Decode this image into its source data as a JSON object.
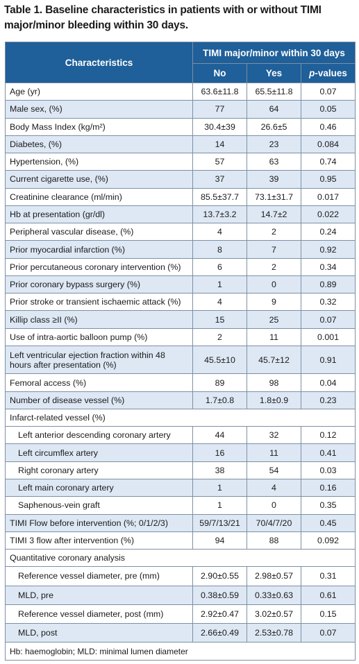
{
  "title": "Table 1. Baseline characteristics in patients with or without TIMI major/minor bleeding within 30 days.",
  "header": {
    "characteristics": "Characteristics",
    "group": "TIMI major/minor within 30 days",
    "no": "No",
    "yes": "Yes",
    "p_italic": "p",
    "p_rest": "-values"
  },
  "rows": [
    {
      "label": "Age (yr)",
      "no": "63.6±11.8",
      "yes": "65.5±11.8",
      "p": "0.07"
    },
    {
      "label": "Male sex, (%)",
      "no": "77",
      "yes": "64",
      "p": "0.05"
    },
    {
      "label": "Body Mass Index (kg/m²)",
      "no": "30.4±39",
      "yes": "26.6±5",
      "p": "0.46"
    },
    {
      "label": "Diabetes, (%)",
      "no": "14",
      "yes": "23",
      "p": "0.084"
    },
    {
      "label": "Hypertension, (%)",
      "no": "57",
      "yes": "63",
      "p": "0.74"
    },
    {
      "label": "Current cigarette use, (%)",
      "no": "37",
      "yes": "39",
      "p": "0.95"
    },
    {
      "label": "Creatinine clearance (ml/min)",
      "no": "85.5±37.7",
      "yes": "73.1±31.7",
      "p": "0.017"
    },
    {
      "label": "Hb at presentation (gr/dl)",
      "no": "13.7±3.2",
      "yes": "14.7±2",
      "p": "0.022"
    },
    {
      "label": "Peripheral vascular disease, (%)",
      "no": "4",
      "yes": "2",
      "p": "0.24"
    },
    {
      "label": "Prior myocardial infarction (%)",
      "no": "8",
      "yes": "7",
      "p": "0.92"
    },
    {
      "label": "Prior percutaneous coronary intervention (%)",
      "no": "6",
      "yes": "2",
      "p": "0.34"
    },
    {
      "label": "Prior coronary bypass surgery (%)",
      "no": "1",
      "yes": "0",
      "p": "0.89"
    },
    {
      "label": "Prior stroke or transient ischaemic attack (%)",
      "no": "4",
      "yes": "9",
      "p": "0.32"
    },
    {
      "label": "Killip class ≥II (%)",
      "no": "15",
      "yes": "25",
      "p": "0.07"
    },
    {
      "label": "Use of intra-aortic balloon pump (%)",
      "no": "2",
      "yes": "11",
      "p": "0.001"
    },
    {
      "label": "Left ventricular ejection fraction within 48 hours after presentation (%)",
      "no": "45.5±10",
      "yes": "45.7±12",
      "p": "0.91"
    },
    {
      "label": "Femoral access (%)",
      "no": "89",
      "yes": "98",
      "p": "0.04"
    },
    {
      "label": "Number of disease vessel (%)",
      "no": "1.7±0.8",
      "yes": "1.8±0.9",
      "p": "0.23"
    },
    {
      "label": "Infarct-related vessel (%)"
    },
    {
      "label": "Left anterior descending coronary artery",
      "no": "44",
      "yes": "32",
      "p": "0.12"
    },
    {
      "label": "Left circumflex artery",
      "no": "16",
      "yes": "11",
      "p": "0.41"
    },
    {
      "label": "Right coronary artery",
      "no": "38",
      "yes": "54",
      "p": "0.03"
    },
    {
      "label": "Left main coronary artery",
      "no": "1",
      "yes": "4",
      "p": "0.16"
    },
    {
      "label": "Saphenous-vein graft",
      "no": "1",
      "yes": "0",
      "p": "0.35"
    },
    {
      "label": "TIMI Flow before intervention (%; 0/1/2/3)",
      "no": "59/7/13/21",
      "yes": "70/4/7/20",
      "p": "0.45"
    },
    {
      "label": "TIMI 3 flow after intervention (%)",
      "no": "94",
      "yes": "88",
      "p": "0.092"
    },
    {
      "label": "Quantitative coronary analysis"
    },
    {
      "label": "Reference vessel diameter, pre (mm)",
      "no": "2.90±0.55",
      "yes": "2.98±0.57",
      "p": "0.31"
    },
    {
      "label": "MLD, pre",
      "no": "0.38±0.59",
      "yes": "0.33±0.63",
      "p": "0.61"
    },
    {
      "label": "Reference vessel diameter, post (mm)",
      "no": "2.92±0.47",
      "yes": "3.02±0.57",
      "p": "0.15"
    },
    {
      "label": "MLD, post",
      "no": "2.66±0.49",
      "yes": "2.53±0.78",
      "p": "0.07"
    }
  ],
  "footnote": "Hb: haemoglobin; MLD: minimal lumen diameter",
  "colors": {
    "header_bg": "#1f5f9a",
    "alt_row_bg": "#dde8f4",
    "border": "#7d8fa3"
  }
}
